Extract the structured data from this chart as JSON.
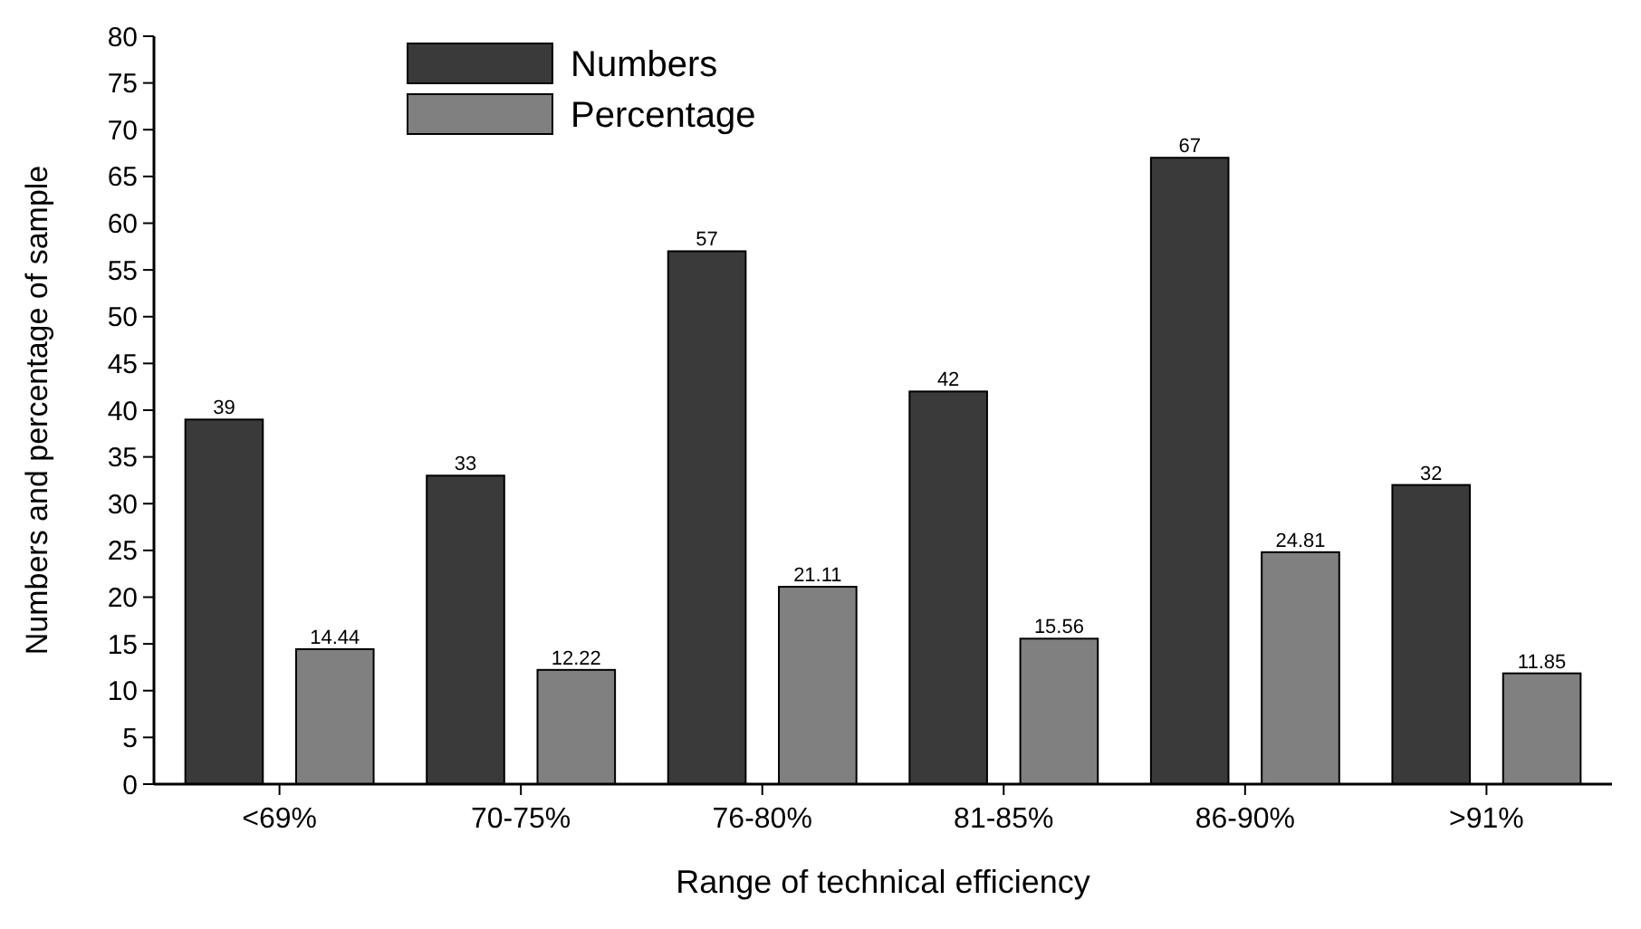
{
  "chart_data": {
    "type": "bar",
    "xlabel": "Range of technical efficiency",
    "ylabel": "Numbers and percentage of sample",
    "categories": [
      "<69%",
      "70-75%",
      "76-80%",
      "81-85%",
      "86-90%",
      ">91%"
    ],
    "series": [
      {
        "name": "Numbers",
        "color": "#3a3a3a",
        "values": [
          39,
          33,
          57,
          42,
          67,
          32
        ]
      },
      {
        "name": "Percentage",
        "color": "#808080",
        "values": [
          14.44,
          12.22,
          21.11,
          15.56,
          24.81,
          11.85
        ]
      }
    ],
    "ylim": [
      0,
      80
    ],
    "yticks": [
      0,
      5,
      10,
      15,
      20,
      25,
      30,
      35,
      40,
      45,
      50,
      55,
      60,
      65,
      70,
      75,
      80
    ],
    "data_labels": true,
    "legend": "top left",
    "grid": false
  }
}
